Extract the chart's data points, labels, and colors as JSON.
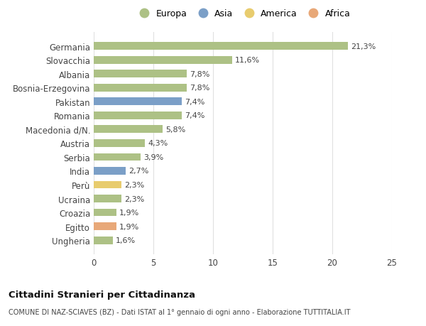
{
  "categories": [
    "Germania",
    "Slovacchia",
    "Albania",
    "Bosnia-Erzegovina",
    "Pakistan",
    "Romania",
    "Macedonia d/N.",
    "Austria",
    "Serbia",
    "India",
    "Perù",
    "Ucraina",
    "Croazia",
    "Egitto",
    "Ungheria"
  ],
  "values": [
    21.3,
    11.6,
    7.8,
    7.8,
    7.4,
    7.4,
    5.8,
    4.3,
    3.9,
    2.7,
    2.3,
    2.3,
    1.9,
    1.9,
    1.6
  ],
  "labels": [
    "21,3%",
    "11,6%",
    "7,8%",
    "7,8%",
    "7,4%",
    "7,4%",
    "5,8%",
    "4,3%",
    "3,9%",
    "2,7%",
    "2,3%",
    "2,3%",
    "1,9%",
    "1,9%",
    "1,6%"
  ],
  "continents": [
    "Europa",
    "Europa",
    "Europa",
    "Europa",
    "Asia",
    "Europa",
    "Europa",
    "Europa",
    "Europa",
    "Asia",
    "America",
    "Europa",
    "Europa",
    "Africa",
    "Europa"
  ],
  "continent_colors": {
    "Europa": "#adc185",
    "Asia": "#7b9fc7",
    "America": "#e8cc6e",
    "Africa": "#e8a878"
  },
  "legend_items": [
    "Europa",
    "Asia",
    "America",
    "Africa"
  ],
  "xlim": [
    0,
    25
  ],
  "xticks": [
    0,
    5,
    10,
    15,
    20,
    25
  ],
  "title": "Cittadini Stranieri per Cittadinanza",
  "subtitle": "COMUNE DI NAZ-SCIAVES (BZ) - Dati ISTAT al 1° gennaio di ogni anno - Elaborazione TUTTITALIA.IT",
  "background_color": "#ffffff",
  "plot_bg_color": "#ffffff",
  "grid_color": "#e0e0e0",
  "bar_height": 0.55
}
